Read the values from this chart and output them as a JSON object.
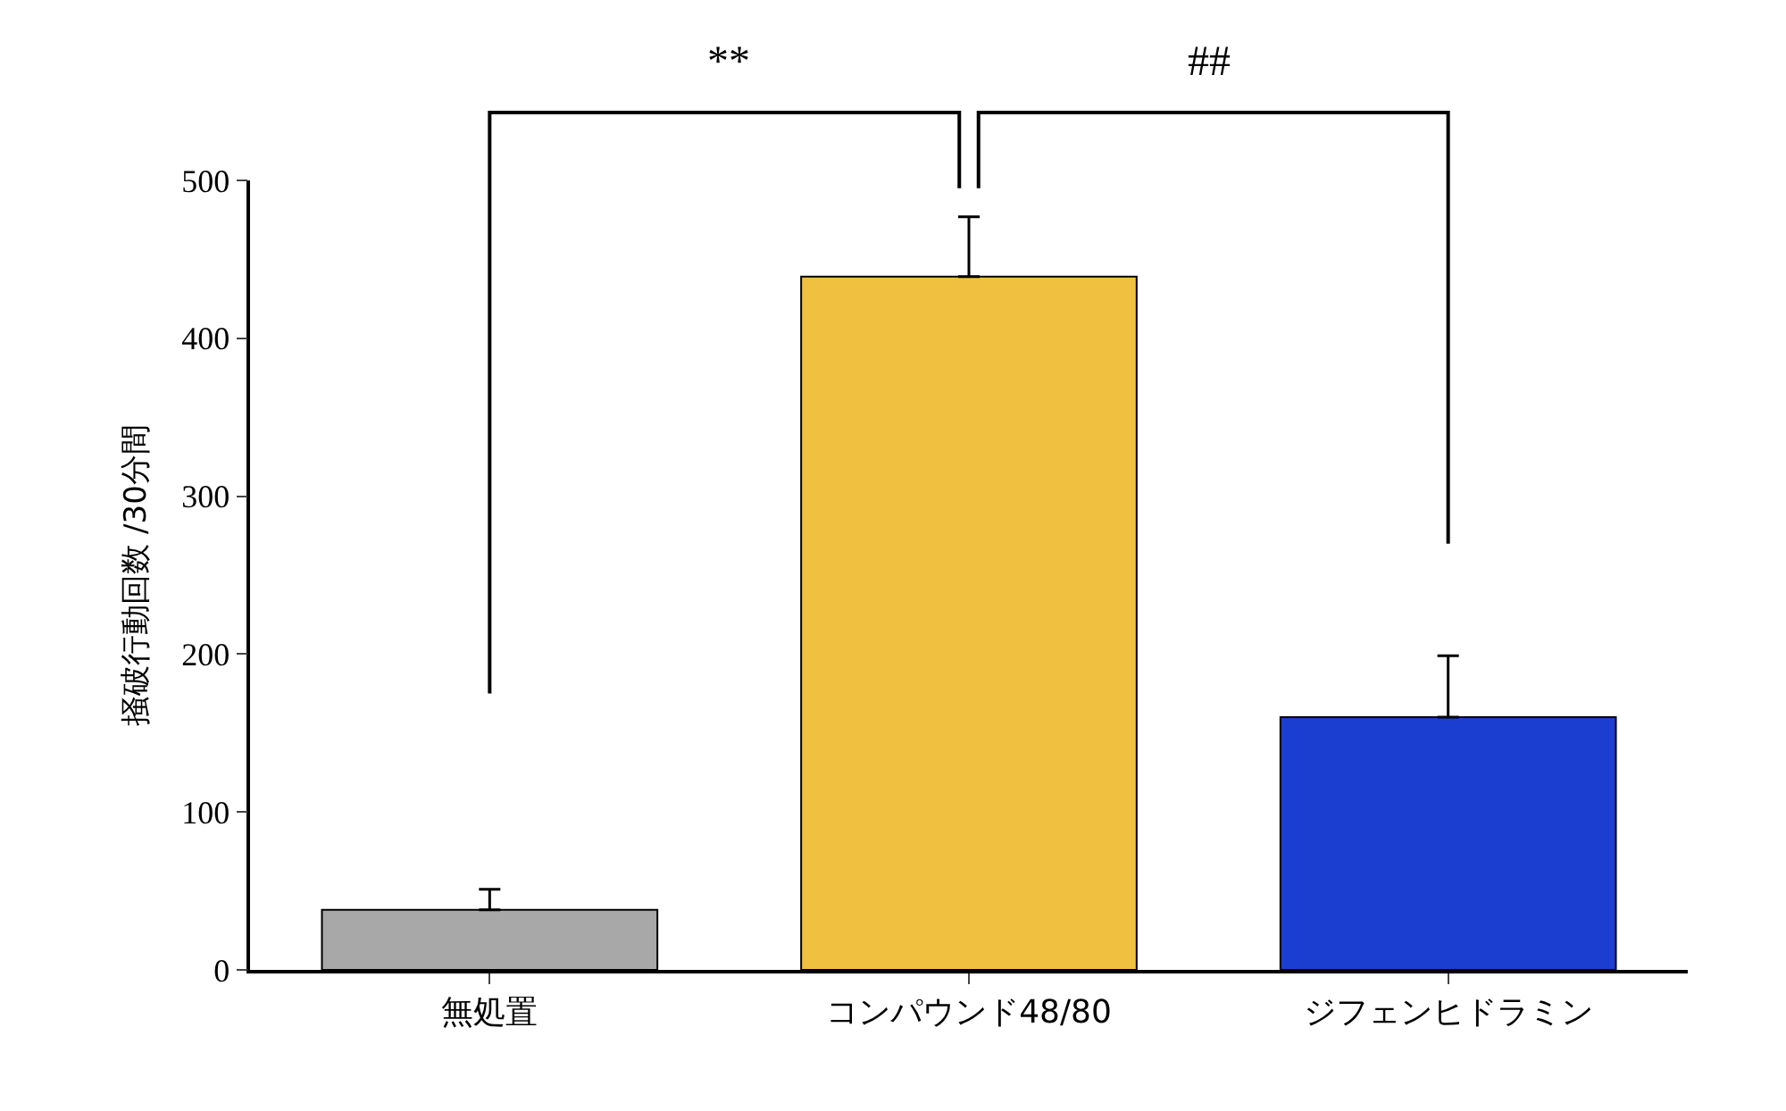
{
  "chart_data": {
    "type": "bar",
    "ylabel": "掻破行動回数 /30分間",
    "categories": [
      "無処置",
      "コンパウンド48/80",
      "ジフェンヒドラミン"
    ],
    "values": [
      38,
      439,
      160
    ],
    "colors": [
      "#a8a8a8",
      "#f0c040",
      "#1c3ed0"
    ],
    "errors": [
      [
        38,
        51
      ],
      [
        439,
        477
      ],
      [
        160,
        199
      ]
    ],
    "ylim": [
      0,
      500
    ],
    "yticks": [
      0,
      100,
      200,
      300,
      400,
      500
    ],
    "annotations": [
      "**",
      "##"
    ]
  }
}
